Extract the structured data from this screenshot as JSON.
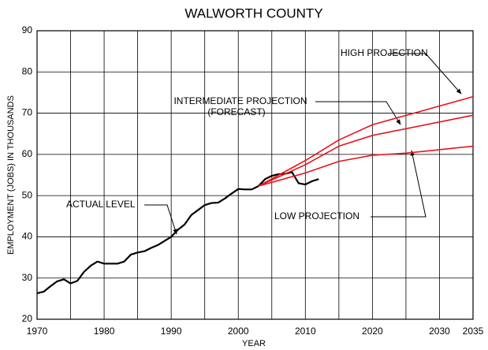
{
  "chart_data": {
    "type": "line",
    "title": "WALWORTH COUNTY",
    "x_label": "YEAR",
    "y_label": "EMPLOYMENT (JOBS) IN  THOUSANDS",
    "xlim": [
      1970,
      2035
    ],
    "xticks": [
      1970,
      1980,
      1990,
      2000,
      2010,
      2020,
      2030,
      2035
    ],
    "x_gridlines": [
      1970,
      1975,
      1980,
      1985,
      1990,
      1995,
      2000,
      2005,
      2010,
      2015,
      2020,
      2025,
      2030,
      2035
    ],
    "ylim": [
      20,
      90
    ],
    "yticks": [
      20,
      30,
      40,
      50,
      60,
      70,
      80,
      90
    ],
    "grid": true,
    "annotations": [
      "(FORECAST)"
    ],
    "series": [
      {
        "name": "ACTUAL LEVEL",
        "color": "#000000",
        "x": [
          1970,
          1971,
          1972,
          1973,
          1974,
          1975,
          1976,
          1977,
          1978,
          1979,
          1980,
          1981,
          1982,
          1983,
          1984,
          1985,
          1986,
          1987,
          1988,
          1989,
          1990,
          1991,
          1992,
          1993,
          1994,
          1995,
          1996,
          1997,
          1998,
          1999,
          2000,
          2001,
          2002,
          2003,
          2004,
          2005,
          2006,
          2007,
          2008,
          2009,
          2010,
          2011,
          2012
        ],
        "values": [
          26.3,
          26.7,
          28,
          29.2,
          29.7,
          28.7,
          29.3,
          31.5,
          33,
          34,
          33.5,
          33.5,
          33.5,
          34,
          35.7,
          36.2,
          36.5,
          37.3,
          38,
          39,
          40,
          41.7,
          43,
          45.3,
          46.5,
          47.7,
          48.2,
          48.3,
          49.3,
          50.5,
          51.6,
          51.5,
          51.5,
          52.3,
          54,
          54.8,
          55.2,
          55.3,
          55.7,
          53,
          52.7,
          53.5,
          54
        ]
      },
      {
        "name": "HIGH PROJECTION",
        "color": "#e8141c",
        "x": [
          2003,
          2010,
          2015,
          2020,
          2035
        ],
        "values": [
          52.3,
          58.5,
          63.5,
          67.2,
          74
        ]
      },
      {
        "name": "INTERMEDIATE PROJECTION",
        "color": "#e8141c",
        "x": [
          2003,
          2010,
          2015,
          2020,
          2035
        ],
        "values": [
          52.3,
          57.5,
          62,
          64.6,
          69.5
        ]
      },
      {
        "name": "LOW PROJECTION",
        "color": "#e8141c",
        "x": [
          2003,
          2010,
          2015,
          2020,
          2025,
          2035
        ],
        "values": [
          52.3,
          55.5,
          58.3,
          59.8,
          60.3,
          62
        ]
      }
    ]
  }
}
